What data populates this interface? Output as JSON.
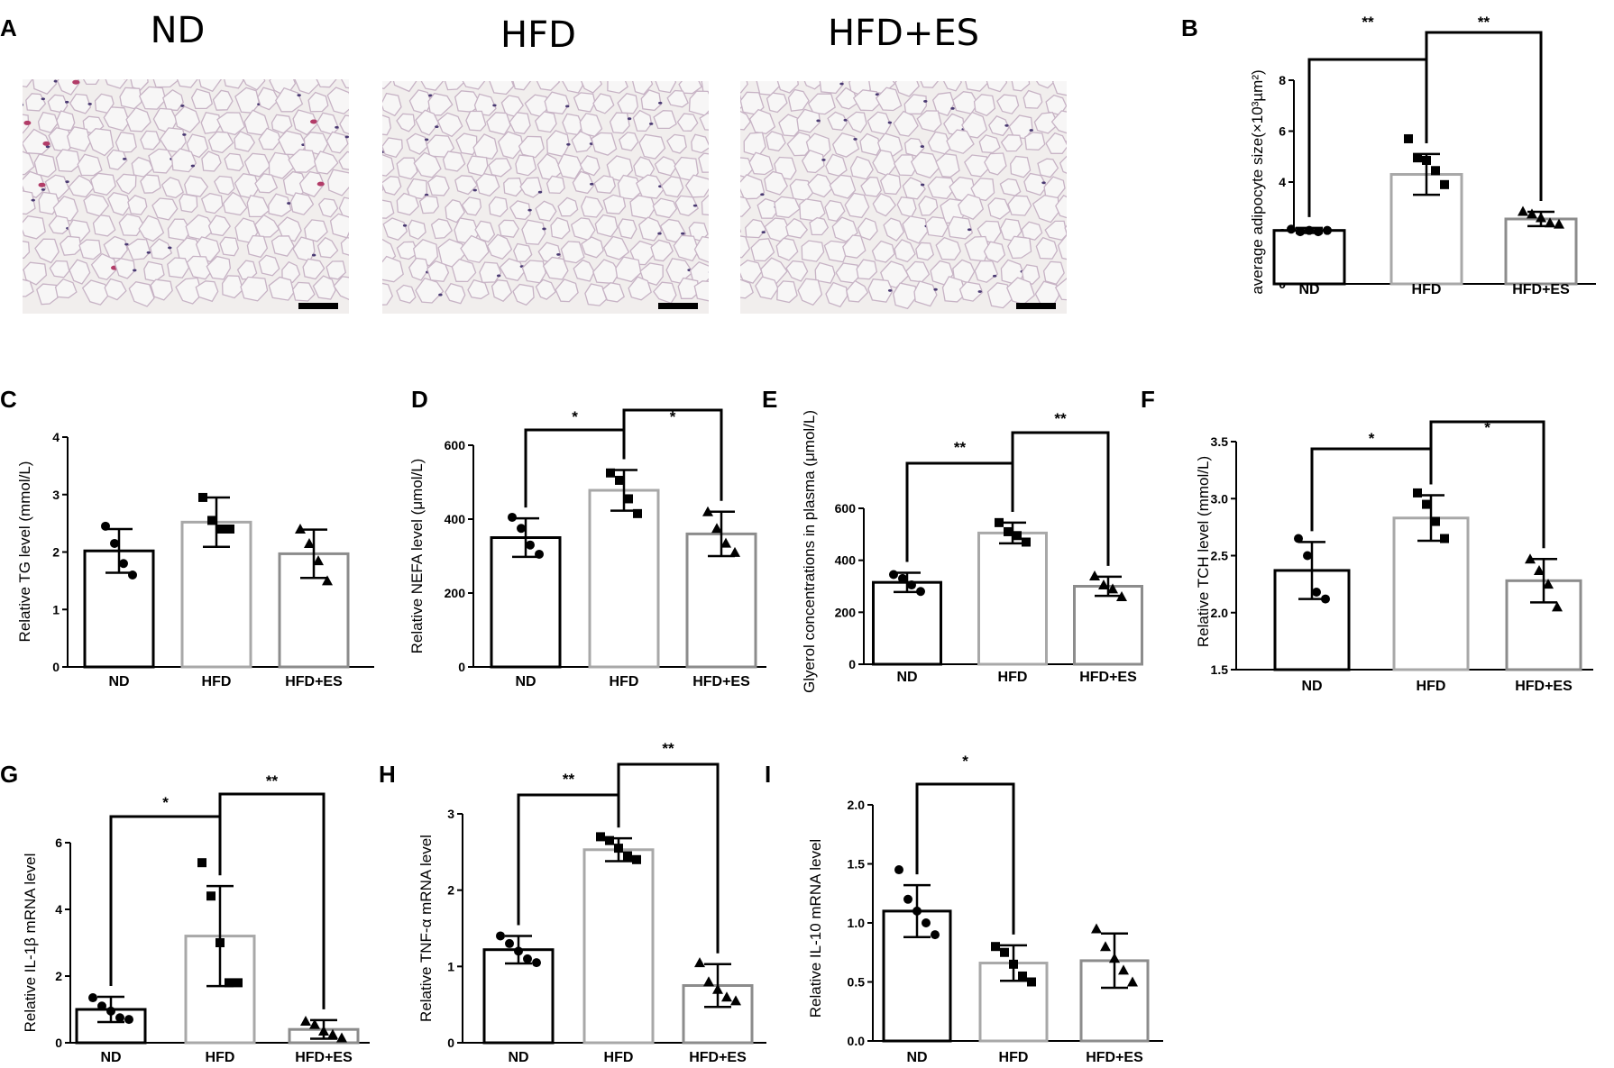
{
  "micrographs": {
    "letter": "A",
    "titles": [
      "ND",
      "HFD",
      "HFD+ES"
    ],
    "background_color": "#f1eeed",
    "cell_wall_color": "#c7b3c5",
    "nucleus_color": "#4a3a72",
    "vessel_color": "#b23c68",
    "scale_bar_color": "#000000"
  },
  "colors": {
    "ND": "#000000",
    "HFD": "#a8a8a8",
    "HFD+ES": "#8c8c8c",
    "points": "#000000"
  },
  "groups": [
    "ND",
    "HFD",
    "HFD+ES"
  ],
  "chart_data": [
    {
      "id": "B",
      "letter": "B",
      "type": "bar",
      "ylabel": "average adipocyte size(×10³µm²)",
      "ylim": [
        0,
        8
      ],
      "yticks": [
        "0",
        "2",
        "4",
        "6",
        "8"
      ],
      "means": [
        2.1,
        4.3,
        2.55
      ],
      "sd": [
        0.1,
        0.8,
        0.28
      ],
      "points": [
        [
          2.15,
          2.05,
          2.1,
          2.05,
          2.1
        ],
        [
          5.7,
          4.95,
          4.85,
          4.45,
          3.9
        ],
        [
          2.85,
          2.75,
          2.6,
          2.4,
          2.35
        ]
      ],
      "significance": [
        {
          "between": [
            0,
            1
          ],
          "label": "**"
        },
        {
          "between": [
            1,
            2
          ],
          "label": "**"
        }
      ]
    },
    {
      "id": "C",
      "letter": "C",
      "type": "bar",
      "ylabel": "Relative TG level (mmol/L)",
      "ylim": [
        0,
        4
      ],
      "yticks": [
        "0",
        "1",
        "2",
        "3",
        "4"
      ],
      "means": [
        2.02,
        2.52,
        1.97
      ],
      "sd": [
        0.38,
        0.43,
        0.42
      ],
      "points": [
        [
          2.45,
          2.15,
          1.8,
          1.6
        ],
        [
          2.95,
          2.55,
          2.4,
          2.4
        ],
        [
          2.4,
          2.15,
          1.85,
          1.5
        ]
      ],
      "significance": []
    },
    {
      "id": "D",
      "letter": "D",
      "type": "bar",
      "ylabel": "Relative NEFA level (μmol/L)",
      "ylim": [
        0,
        600
      ],
      "yticks": [
        "0",
        "200",
        "400",
        "600"
      ],
      "means": [
        350,
        478,
        360
      ],
      "sd": [
        52,
        55,
        60
      ],
      "points": [
        [
          405,
          375,
          330,
          305
        ],
        [
          525,
          505,
          455,
          415
        ],
        [
          420,
          375,
          335,
          310
        ]
      ],
      "significance": [
        {
          "between": [
            0,
            1
          ],
          "label": "*"
        },
        {
          "between": [
            1,
            2
          ],
          "label": "*"
        }
      ]
    },
    {
      "id": "E",
      "letter": "E",
      "type": "bar",
      "ylabel": "Glyerol concentrations in plasma (μmol/L)",
      "ylim": [
        0,
        600
      ],
      "yticks": [
        "0",
        "200",
        "400",
        "600"
      ],
      "means": [
        315,
        505,
        300
      ],
      "sd": [
        37,
        40,
        37
      ],
      "points": [
        [
          345,
          330,
          305,
          280
        ],
        [
          545,
          510,
          495,
          470
        ],
        [
          340,
          305,
          290,
          260
        ]
      ],
      "significance": [
        {
          "between": [
            0,
            1
          ],
          "label": "**"
        },
        {
          "between": [
            1,
            2
          ],
          "label": "**"
        }
      ]
    },
    {
      "id": "F",
      "letter": "F",
      "type": "bar",
      "ylabel": "Relative TCH level (mmol/L)",
      "ylim": [
        1.5,
        3.5
      ],
      "yticks": [
        "1.5",
        "2.0",
        "2.5",
        "3.0",
        "3.5"
      ],
      "means": [
        2.37,
        2.83,
        2.28
      ],
      "sd": [
        0.25,
        0.2,
        0.19
      ],
      "points": [
        [
          2.65,
          2.5,
          2.18,
          2.12
        ],
        [
          3.05,
          2.95,
          2.8,
          2.65
        ],
        [
          2.47,
          2.37,
          2.25,
          2.05
        ]
      ],
      "significance": [
        {
          "between": [
            0,
            1
          ],
          "label": "*"
        },
        {
          "between": [
            1,
            2
          ],
          "label": "*"
        }
      ]
    },
    {
      "id": "G",
      "letter": "G",
      "type": "bar",
      "ylabel": "Relative IL-1β mRNA level",
      "ylim": [
        0,
        6
      ],
      "yticks": [
        "0",
        "2",
        "4",
        "6"
      ],
      "means": [
        1.0,
        3.2,
        0.4
      ],
      "sd": [
        0.38,
        1.5,
        0.28
      ],
      "points": [
        [
          1.35,
          1.1,
          0.95,
          0.75,
          0.7
        ],
        [
          5.4,
          4.4,
          3.0,
          1.8,
          1.8
        ],
        [
          0.65,
          0.55,
          0.35,
          0.25,
          0.15
        ]
      ],
      "significance": [
        {
          "between": [
            0,
            1
          ],
          "label": "*"
        },
        {
          "between": [
            1,
            2
          ],
          "label": "**"
        }
      ]
    },
    {
      "id": "H",
      "letter": "H",
      "type": "bar",
      "ylabel": "Relative TNF-α mRNA level",
      "ylim": [
        0,
        3
      ],
      "yticks": [
        "0",
        "1",
        "2",
        "3"
      ],
      "means": [
        1.22,
        2.53,
        0.75
      ],
      "sd": [
        0.18,
        0.15,
        0.28
      ],
      "points": [
        [
          1.4,
          1.3,
          1.2,
          1.1,
          1.05
        ],
        [
          2.7,
          2.65,
          2.55,
          2.45,
          2.4
        ],
        [
          1.05,
          0.8,
          0.7,
          0.6,
          0.55
        ]
      ],
      "significance": [
        {
          "between": [
            0,
            1
          ],
          "label": "**"
        },
        {
          "between": [
            1,
            2
          ],
          "label": "**"
        }
      ]
    },
    {
      "id": "I",
      "letter": "I",
      "type": "bar",
      "ylabel": "Relative IL-10 mRNA level",
      "ylim": [
        0,
        2
      ],
      "yticks": [
        "0.0",
        "0.5",
        "1.0",
        "1.5",
        "2.0"
      ],
      "means": [
        1.1,
        0.66,
        0.68
      ],
      "sd": [
        0.22,
        0.15,
        0.23
      ],
      "points": [
        [
          1.45,
          1.2,
          1.1,
          1.0,
          0.9
        ],
        [
          0.8,
          0.75,
          0.65,
          0.55,
          0.5
        ],
        [
          0.95,
          0.8,
          0.7,
          0.6,
          0.5
        ]
      ],
      "significance": [
        {
          "between": [
            0,
            1
          ],
          "label": "*"
        }
      ]
    }
  ]
}
